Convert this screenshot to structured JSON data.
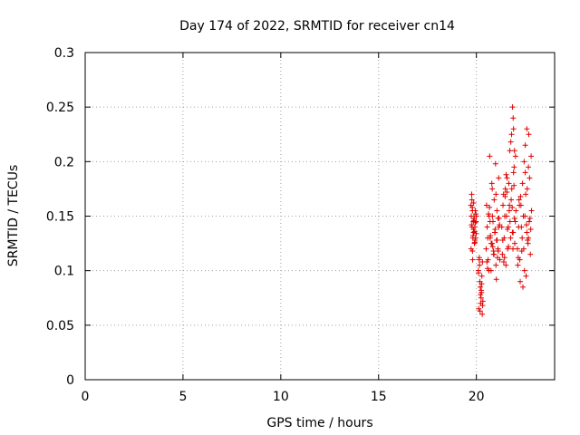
{
  "chart_data": {
    "type": "scatter",
    "title": "Day 174 of 2022, SRMTID for receiver cn14",
    "xlabel": "GPS time / hours",
    "ylabel": "SRMTID / TECUs",
    "xlim": [
      0,
      24
    ],
    "ylim": [
      0,
      0.3
    ],
    "xticks": [
      0,
      5,
      10,
      15,
      20
    ],
    "yticks": [
      0,
      0.05,
      0.1,
      0.15,
      0.2,
      0.25,
      0.3
    ],
    "xtick_labels": [
      "0",
      "5",
      "10",
      "15",
      "20"
    ],
    "ytick_labels": [
      "0",
      "0.05",
      "0.1",
      "0.15",
      "0.2",
      "0.25",
      "0.3"
    ],
    "grid": true,
    "legend": "none",
    "marker": "plus",
    "color": "#e00000",
    "x": [
      19.72,
      19.74,
      19.76,
      19.78,
      19.8,
      19.82,
      19.84,
      19.86,
      19.88,
      19.9,
      19.92,
      19.94,
      19.96,
      19.98,
      20.0,
      19.73,
      19.77,
      19.81,
      19.85,
      19.89,
      19.93,
      19.97,
      19.75,
      19.79,
      19.83,
      19.87,
      19.91,
      19.95,
      19.99,
      19.8,
      19.86,
      19.92,
      20.1,
      20.14,
      20.18,
      20.22,
      20.26,
      20.3,
      20.12,
      20.16,
      20.2,
      20.24,
      20.28,
      20.32,
      20.15,
      20.21,
      20.27,
      20.33,
      20.11,
      20.19,
      20.25,
      20.31,
      20.5,
      20.55,
      20.6,
      20.65,
      20.7,
      20.75,
      20.8,
      20.85,
      20.9,
      20.95,
      21.0,
      21.05,
      21.1,
      21.15,
      21.2,
      20.52,
      20.58,
      20.64,
      20.7,
      20.76,
      20.82,
      20.88,
      20.94,
      21.0,
      21.06,
      21.12,
      21.18,
      20.54,
      20.62,
      20.72,
      20.84,
      20.96,
      21.08,
      21.16,
      20.57,
      20.67,
      20.79,
      20.91,
      21.03,
      21.14,
      20.68,
      20.81,
      20.98,
      21.11,
      20.88,
      21.02,
      21.3,
      21.36,
      21.42,
      21.48,
      21.54,
      21.6,
      21.66,
      21.72,
      21.78,
      21.84,
      21.9,
      21.96,
      22.02,
      21.33,
      21.39,
      21.45,
      21.51,
      21.57,
      21.63,
      21.69,
      21.75,
      21.81,
      21.87,
      21.93,
      21.99,
      21.35,
      21.47,
      21.59,
      21.71,
      21.83,
      21.95,
      21.4,
      21.52,
      21.64,
      21.76,
      21.88,
      22.0,
      21.44,
      21.56,
      21.68,
      21.8,
      21.92,
      21.85,
      21.88,
      21.9,
      21.95,
      22.1,
      22.16,
      22.22,
      22.28,
      22.34,
      22.4,
      22.46,
      22.52,
      22.58,
      22.64,
      22.7,
      22.76,
      22.82,
      22.12,
      22.18,
      22.24,
      22.3,
      22.36,
      22.42,
      22.48,
      22.54,
      22.6,
      22.66,
      22.72,
      22.78,
      22.14,
      22.26,
      22.38,
      22.5,
      22.62,
      22.74,
      22.2,
      22.32,
      22.44,
      22.56,
      22.68,
      22.8,
      22.5,
      22.58,
      22.66
    ],
    "y": [
      0.16,
      0.15,
      0.17,
      0.14,
      0.155,
      0.13,
      0.145,
      0.135,
      0.15,
      0.125,
      0.14,
      0.155,
      0.13,
      0.145,
      0.15,
      0.12,
      0.165,
      0.11,
      0.138,
      0.148,
      0.128,
      0.152,
      0.142,
      0.158,
      0.132,
      0.146,
      0.136,
      0.144,
      0.134,
      0.118,
      0.162,
      0.126,
      0.1,
      0.11,
      0.09,
      0.07,
      0.08,
      0.06,
      0.065,
      0.105,
      0.085,
      0.075,
      0.095,
      0.068,
      0.112,
      0.078,
      0.088,
      0.072,
      0.098,
      0.063,
      0.082,
      0.108,
      0.12,
      0.14,
      0.11,
      0.15,
      0.13,
      0.1,
      0.125,
      0.145,
      0.115,
      0.135,
      0.105,
      0.155,
      0.12,
      0.14,
      0.11,
      0.16,
      0.13,
      0.1,
      0.145,
      0.125,
      0.15,
      0.115,
      0.135,
      0.17,
      0.128,
      0.118,
      0.142,
      0.108,
      0.152,
      0.132,
      0.122,
      0.138,
      0.112,
      0.148,
      0.102,
      0.158,
      0.18,
      0.165,
      0.128,
      0.185,
      0.205,
      0.175,
      0.198,
      0.148,
      0.118,
      0.092,
      0.14,
      0.16,
      0.13,
      0.175,
      0.15,
      0.12,
      0.18,
      0.145,
      0.165,
      0.135,
      0.19,
      0.125,
      0.155,
      0.115,
      0.17,
      0.15,
      0.105,
      0.185,
      0.14,
      0.16,
      0.13,
      0.175,
      0.12,
      0.195,
      0.145,
      0.128,
      0.168,
      0.138,
      0.21,
      0.158,
      0.148,
      0.108,
      0.188,
      0.122,
      0.218,
      0.135,
      0.205,
      0.112,
      0.172,
      0.155,
      0.225,
      0.178,
      0.25,
      0.24,
      0.23,
      0.21,
      0.12,
      0.14,
      0.11,
      0.16,
      0.13,
      0.15,
      0.1,
      0.17,
      0.135,
      0.125,
      0.145,
      0.115,
      0.155,
      0.105,
      0.165,
      0.09,
      0.14,
      0.18,
      0.12,
      0.15,
      0.095,
      0.175,
      0.13,
      0.185,
      0.138,
      0.112,
      0.168,
      0.085,
      0.19,
      0.128,
      0.148,
      0.16,
      0.118,
      0.2,
      0.142,
      0.225,
      0.205,
      0.215,
      0.23,
      0.195
    ]
  }
}
